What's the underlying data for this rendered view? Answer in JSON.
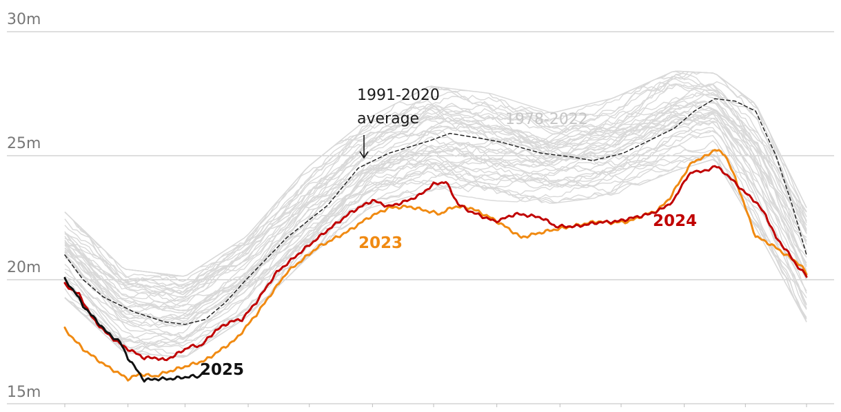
{
  "chart_data": {
    "type": "line",
    "title": "",
    "xlabel": "",
    "ylabel": "",
    "x_range": [
      1,
      365
    ],
    "ylim": [
      15,
      30
    ],
    "y_ticks": [
      {
        "value": 15,
        "label": "15m"
      },
      {
        "value": 20,
        "label": "20m"
      },
      {
        "value": 25,
        "label": "25m"
      },
      {
        "value": 30,
        "label": "30m"
      }
    ],
    "x_ticks": [
      1,
      32,
      60,
      91,
      121,
      152,
      182,
      213,
      244,
      274,
      305,
      335,
      365
    ],
    "colors": {
      "history": "#d9d9d9",
      "average": "#222222",
      "y2023": "#f08a12",
      "y2024": "#c00000",
      "y2025": "#111111",
      "grid": "#bdbdbd"
    },
    "historical_range": {
      "label": "1978-2022",
      "member_count": 45,
      "upper_envelope": [
        [
          1,
          22.8
        ],
        [
          30,
          20.5
        ],
        [
          60,
          20.2
        ],
        [
          90,
          21.8
        ],
        [
          120,
          24.6
        ],
        [
          150,
          26.6
        ],
        [
          180,
          27.9
        ],
        [
          210,
          27.6
        ],
        [
          240,
          26.8
        ],
        [
          270,
          27.4
        ],
        [
          300,
          28.5
        ],
        [
          320,
          28.4
        ],
        [
          340,
          27.2
        ],
        [
          365,
          23.0
        ]
      ],
      "lower_envelope": [
        [
          1,
          19.2
        ],
        [
          30,
          17.0
        ],
        [
          60,
          16.8
        ],
        [
          90,
          18.4
        ],
        [
          120,
          20.8
        ],
        [
          150,
          22.8
        ],
        [
          180,
          23.5
        ],
        [
          210,
          23.1
        ],
        [
          240,
          23.0
        ],
        [
          270,
          23.3
        ],
        [
          300,
          24.3
        ],
        [
          320,
          24.8
        ],
        [
          340,
          22.0
        ],
        [
          365,
          18.2
        ]
      ]
    },
    "series": [
      {
        "name": "1991-2020 average",
        "style": "dashed",
        "color": "#222222",
        "points": [
          [
            1,
            21.0
          ],
          [
            10,
            20.0
          ],
          [
            20,
            19.3
          ],
          [
            35,
            18.7
          ],
          [
            50,
            18.3
          ],
          [
            60,
            18.2
          ],
          [
            70,
            18.4
          ],
          [
            80,
            19.1
          ],
          [
            90,
            20.0
          ],
          [
            110,
            21.7
          ],
          [
            130,
            23.0
          ],
          [
            145,
            24.5
          ],
          [
            160,
            25.1
          ],
          [
            180,
            25.6
          ],
          [
            190,
            25.9
          ],
          [
            205,
            25.7
          ],
          [
            215,
            25.55
          ],
          [
            235,
            25.1
          ],
          [
            250,
            24.95
          ],
          [
            260,
            24.8
          ],
          [
            275,
            25.1
          ],
          [
            290,
            25.7
          ],
          [
            300,
            26.1
          ],
          [
            310,
            26.8
          ],
          [
            320,
            27.3
          ],
          [
            330,
            27.2
          ],
          [
            340,
            26.8
          ],
          [
            350,
            25.0
          ],
          [
            358,
            23.0
          ],
          [
            365,
            21.0
          ]
        ]
      },
      {
        "name": "2023",
        "style": "solid",
        "color": "#f08a12",
        "points": [
          [
            1,
            18.0
          ],
          [
            10,
            17.2
          ],
          [
            20,
            16.6
          ],
          [
            26,
            16.3
          ],
          [
            32,
            16.0
          ],
          [
            38,
            16.2
          ],
          [
            45,
            16.1
          ],
          [
            50,
            16.25
          ],
          [
            60,
            16.5
          ],
          [
            70,
            16.75
          ],
          [
            78,
            17.2
          ],
          [
            85,
            17.6
          ],
          [
            95,
            18.6
          ],
          [
            110,
            20.3
          ],
          [
            125,
            21.3
          ],
          [
            140,
            21.95
          ],
          [
            150,
            22.5
          ],
          [
            160,
            22.9
          ],
          [
            170,
            22.95
          ],
          [
            180,
            22.75
          ],
          [
            185,
            22.65
          ],
          [
            192,
            22.95
          ],
          [
            200,
            22.9
          ],
          [
            210,
            22.5
          ],
          [
            218,
            22.1
          ],
          [
            225,
            21.7
          ],
          [
            232,
            21.85
          ],
          [
            240,
            22.0
          ],
          [
            250,
            22.15
          ],
          [
            262,
            22.35
          ],
          [
            270,
            22.3
          ],
          [
            278,
            22.35
          ],
          [
            285,
            22.6
          ],
          [
            292,
            22.8
          ],
          [
            298,
            23.3
          ],
          [
            303,
            24.0
          ],
          [
            309,
            24.75
          ],
          [
            315,
            24.95
          ],
          [
            320,
            25.25
          ],
          [
            325,
            25.05
          ],
          [
            330,
            24.1
          ],
          [
            335,
            22.9
          ],
          [
            340,
            21.75
          ],
          [
            348,
            21.4
          ],
          [
            355,
            21.0
          ],
          [
            362,
            20.6
          ],
          [
            365,
            20.25
          ]
        ]
      },
      {
        "name": "2024",
        "style": "solid",
        "color": "#c00000",
        "points": [
          [
            1,
            19.8
          ],
          [
            8,
            19.4
          ],
          [
            15,
            18.4
          ],
          [
            22,
            17.8
          ],
          [
            30,
            17.3
          ],
          [
            40,
            16.85
          ],
          [
            46,
            16.85
          ],
          [
            50,
            16.75
          ],
          [
            55,
            16.95
          ],
          [
            62,
            17.3
          ],
          [
            68,
            17.35
          ],
          [
            75,
            17.95
          ],
          [
            82,
            18.3
          ],
          [
            88,
            18.4
          ],
          [
            95,
            19.1
          ],
          [
            105,
            20.3
          ],
          [
            118,
            21.2
          ],
          [
            130,
            22.0
          ],
          [
            142,
            22.75
          ],
          [
            152,
            23.2
          ],
          [
            160,
            22.95
          ],
          [
            168,
            23.15
          ],
          [
            175,
            23.4
          ],
          [
            182,
            23.85
          ],
          [
            188,
            23.95
          ],
          [
            194,
            23.05
          ],
          [
            200,
            22.75
          ],
          [
            206,
            22.55
          ],
          [
            212,
            22.35
          ],
          [
            216,
            22.45
          ],
          [
            222,
            22.65
          ],
          [
            228,
            22.6
          ],
          [
            235,
            22.5
          ],
          [
            242,
            22.15
          ],
          [
            252,
            22.15
          ],
          [
            262,
            22.3
          ],
          [
            272,
            22.35
          ],
          [
            280,
            22.5
          ],
          [
            288,
            22.65
          ],
          [
            294,
            22.85
          ],
          [
            300,
            23.2
          ],
          [
            305,
            24.0
          ],
          [
            310,
            24.4
          ],
          [
            315,
            24.35
          ],
          [
            320,
            24.6
          ],
          [
            325,
            24.3
          ],
          [
            330,
            23.9
          ],
          [
            335,
            23.5
          ],
          [
            340,
            23.15
          ],
          [
            345,
            22.6
          ],
          [
            350,
            21.7
          ],
          [
            355,
            21.2
          ],
          [
            360,
            20.6
          ],
          [
            365,
            20.15
          ]
        ]
      },
      {
        "name": "2025",
        "style": "solid",
        "color": "#111111",
        "points": [
          [
            1,
            20.0
          ],
          [
            6,
            19.5
          ],
          [
            10,
            18.95
          ],
          [
            16,
            18.4
          ],
          [
            22,
            17.85
          ],
          [
            28,
            17.5
          ],
          [
            32,
            16.85
          ],
          [
            36,
            16.4
          ],
          [
            40,
            15.95
          ],
          [
            46,
            16.0
          ],
          [
            52,
            16.0
          ],
          [
            58,
            16.05
          ],
          [
            63,
            16.1
          ],
          [
            67,
            16.1
          ],
          [
            70,
            16.35
          ]
        ]
      }
    ],
    "annotations": {
      "average_line1": "1991-2020",
      "average_line2": "average",
      "history": "1978-2022",
      "label_2023": "2023",
      "label_2024": "2024",
      "label_2025": "2025"
    }
  }
}
